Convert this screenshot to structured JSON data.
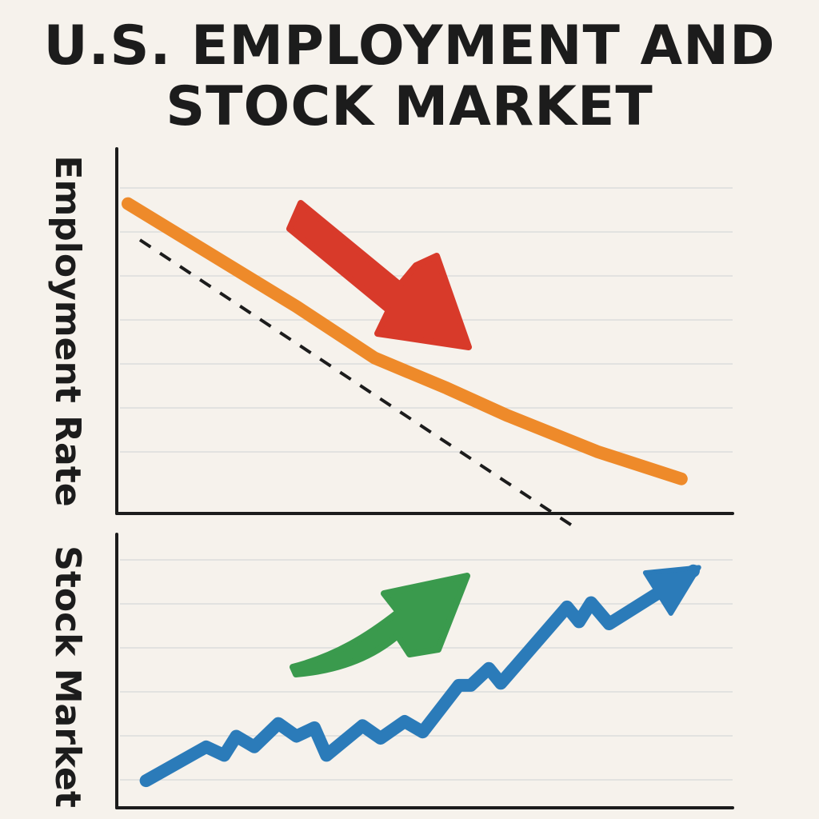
{
  "title_line_1": "U.S. EMPLOYMENT AND",
  "title_line_2": "STOCK MARKET",
  "colors": {
    "background": "#f6f2ec",
    "employment_line": "#ee8a2a",
    "stock_line": "#2b7bb9",
    "down_arrow": "#d83a2a",
    "up_arrow": "#3a9a4d",
    "trend_dashed": "#1c1c1c",
    "grid": "#dcdcdc",
    "axis": "#1c1c1c"
  },
  "chart_data": [
    {
      "type": "line",
      "ylabel": "Employment Rate",
      "xlabel": "",
      "grid": true,
      "ylim": [
        0,
        100
      ],
      "series": [
        {
          "style": "solid",
          "color": "employment_line",
          "points": [
            [
              0,
              94
            ],
            [
              28,
              60
            ],
            [
              41,
              43
            ],
            [
              53,
              33
            ],
            [
              63,
              24
            ],
            [
              78,
              12
            ],
            [
              92,
              3
            ]
          ]
        },
        {
          "style": "dashed",
          "color": "trend_dashed",
          "points": [
            [
              2,
              82
            ],
            [
              75,
              -14
            ]
          ]
        }
      ],
      "annotations": [
        {
          "type": "arrow",
          "direction": "down-right",
          "color": "down_arrow"
        }
      ]
    },
    {
      "type": "line",
      "ylabel": "Stock Market",
      "xlabel": "",
      "grid": true,
      "ylim": [
        0,
        100
      ],
      "series": [
        {
          "style": "solid",
          "color": "stock_line",
          "points": [
            [
              3,
              9
            ],
            [
              13,
              25
            ],
            [
              16,
              21
            ],
            [
              18,
              30
            ],
            [
              21,
              25
            ],
            [
              25,
              36
            ],
            [
              28,
              30
            ],
            [
              31,
              34
            ],
            [
              33,
              21
            ],
            [
              39,
              35
            ],
            [
              42,
              29
            ],
            [
              46,
              37
            ],
            [
              49,
              32
            ],
            [
              55,
              54
            ],
            [
              57,
              54
            ],
            [
              60,
              62
            ],
            [
              62,
              55
            ],
            [
              73,
              91
            ],
            [
              75,
              84
            ],
            [
              77,
              93
            ],
            [
              80,
              83
            ],
            [
              94,
              108
            ]
          ]
        }
      ],
      "annotations": [
        {
          "type": "arrow",
          "direction": "up-right",
          "color": "up_arrow"
        }
      ]
    }
  ]
}
